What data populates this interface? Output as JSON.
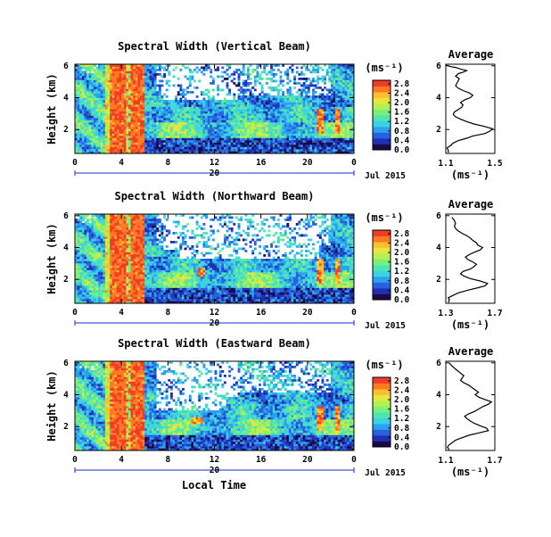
{
  "figure": {
    "x_axis_label": "Local Time",
    "date_label": "Jul 2015",
    "day_label": "20",
    "unit_label": "(ms⁻¹)",
    "y_axis_label": "Height (km)",
    "profile_title": "Average"
  },
  "colors": {
    "colormap": [
      "#1a0a4a",
      "#2030b0",
      "#2860e0",
      "#2aa0ee",
      "#3cd2e6",
      "#50e3b4",
      "#78f07c",
      "#b4f050",
      "#e6e640",
      "#ffbe2e",
      "#ff7a22",
      "#f03c28"
    ],
    "axis": "#000000",
    "date_bar": "#1a2acc"
  },
  "chart_data": [
    {
      "type": "heatmap",
      "title": "Spectral Width (Vertical Beam)",
      "x_ticks": [
        "0",
        "4",
        "8",
        "12",
        "16",
        "20",
        "0"
      ],
      "y_ticks": [
        "2",
        "4",
        "6"
      ],
      "xlim": [
        0,
        24
      ],
      "ylim": [
        0.5,
        6.1
      ],
      "colorbar_ticks": [
        "0.0",
        "0.4",
        "0.8",
        "1.2",
        "1.6",
        "2.0",
        "2.4",
        "2.8"
      ],
      "colorbar_range": [
        0,
        3.0
      ]
    },
    {
      "type": "line",
      "title": "Average",
      "x_ticks": [
        "1.1",
        "1.5"
      ],
      "y_ticks": [
        "2",
        "4",
        "6"
      ],
      "xlim": [
        1.1,
        1.5
      ],
      "ylim": [
        0.5,
        6.1
      ],
      "series": [
        {
          "x": [
            1.12,
            1.12,
            1.11,
            1.14,
            1.16,
            1.2,
            1.27,
            1.32,
            1.42,
            1.46,
            1.48,
            1.41,
            1.33,
            1.27,
            1.22,
            1.18,
            1.16,
            1.17,
            1.2,
            1.23,
            1.24,
            1.22,
            1.25,
            1.3,
            1.32,
            1.29,
            1.24,
            1.2,
            1.18,
            1.19,
            1.2,
            1.21,
            1.18,
            1.2,
            1.24,
            1.27,
            1.22,
            1.18,
            1.14,
            1.12,
            1.1
          ],
          "y": [
            0.55,
            0.7,
            0.85,
            1.0,
            1.15,
            1.3,
            1.45,
            1.6,
            1.75,
            1.9,
            2.05,
            2.2,
            2.35,
            2.5,
            2.65,
            2.8,
            2.95,
            3.1,
            3.25,
            3.4,
            3.55,
            3.7,
            3.85,
            4.0,
            4.15,
            4.3,
            4.45,
            4.6,
            4.75,
            4.9,
            5.05,
            5.2,
            5.35,
            5.5,
            5.6,
            5.7,
            5.8,
            5.9,
            5.95,
            6.0,
            6.05
          ]
        }
      ]
    },
    {
      "type": "heatmap",
      "title": "Spectral Width (Northward Beam)",
      "x_ticks": [
        "0",
        "4",
        "8",
        "12",
        "16",
        "20",
        "0"
      ],
      "y_ticks": [
        "2",
        "4",
        "6"
      ],
      "xlim": [
        0,
        24
      ],
      "ylim": [
        0.5,
        6.1
      ],
      "colorbar_ticks": [
        "0.0",
        "0.4",
        "0.8",
        "1.2",
        "1.6",
        "2.0",
        "2.4",
        "2.8"
      ],
      "colorbar_range": [
        0,
        3.0
      ]
    },
    {
      "type": "line",
      "title": "Average",
      "x_ticks": [
        "1.3",
        "1.7"
      ],
      "y_ticks": [
        "2",
        "4",
        "6"
      ],
      "xlim": [
        1.3,
        1.7
      ],
      "series": [
        {
          "x": [
            1.32,
            1.33,
            1.32,
            1.36,
            1.4,
            1.47,
            1.55,
            1.62,
            1.64,
            1.58,
            1.5,
            1.45,
            1.42,
            1.44,
            1.5,
            1.53,
            1.55,
            1.52,
            1.48,
            1.46,
            1.49,
            1.53,
            1.58,
            1.6,
            1.56,
            1.55,
            1.52,
            1.5,
            1.47,
            1.43,
            1.4,
            1.38,
            1.37,
            1.38,
            1.37,
            1.35
          ],
          "y": [
            0.55,
            0.7,
            0.85,
            1.0,
            1.15,
            1.3,
            1.45,
            1.6,
            1.75,
            1.9,
            2.05,
            2.2,
            2.35,
            2.5,
            2.65,
            2.8,
            2.95,
            3.1,
            3.25,
            3.4,
            3.55,
            3.7,
            3.85,
            4.0,
            4.15,
            4.3,
            4.45,
            4.6,
            4.75,
            4.9,
            5.05,
            5.2,
            5.35,
            5.5,
            5.7,
            5.9
          ]
        }
      ],
      "ylim": [
        0.5,
        6.1
      ]
    },
    {
      "type": "heatmap",
      "title": "Spectral Width (Eastward Beam)",
      "x_ticks": [
        "0",
        "4",
        "8",
        "12",
        "16",
        "20",
        "0"
      ],
      "y_ticks": [
        "2",
        "4",
        "6"
      ],
      "xlim": [
        0,
        24
      ],
      "ylim": [
        0.5,
        6.1
      ],
      "colorbar_ticks": [
        "0.0",
        "0.4",
        "0.8",
        "1.2",
        "1.6",
        "2.0",
        "2.4",
        "2.8"
      ],
      "colorbar_range": [
        0,
        3.0
      ]
    },
    {
      "type": "line",
      "title": "Average",
      "x_ticks": [
        "1.1",
        "1.7"
      ],
      "y_ticks": [
        "2",
        "4",
        "6"
      ],
      "xlim": [
        1.1,
        1.7
      ],
      "ylim": [
        0.5,
        6.1
      ],
      "series": [
        {
          "x": [
            1.14,
            1.12,
            1.14,
            1.18,
            1.22,
            1.3,
            1.38,
            1.5,
            1.62,
            1.6,
            1.52,
            1.45,
            1.4,
            1.36,
            1.33,
            1.38,
            1.45,
            1.5,
            1.55,
            1.62,
            1.66,
            1.58,
            1.5,
            1.46,
            1.5,
            1.46,
            1.42,
            1.38,
            1.32,
            1.28,
            1.3,
            1.32,
            1.27,
            1.22,
            1.18,
            1.14
          ],
          "y": [
            0.55,
            0.7,
            0.85,
            1.0,
            1.15,
            1.3,
            1.45,
            1.6,
            1.75,
            1.9,
            2.05,
            2.2,
            2.35,
            2.5,
            2.65,
            2.8,
            2.95,
            3.1,
            3.25,
            3.4,
            3.55,
            3.7,
            3.85,
            4.0,
            4.15,
            4.3,
            4.45,
            4.6,
            4.75,
            4.9,
            5.05,
            5.2,
            5.4,
            5.6,
            5.8,
            6.0
          ]
        }
      ]
    }
  ]
}
